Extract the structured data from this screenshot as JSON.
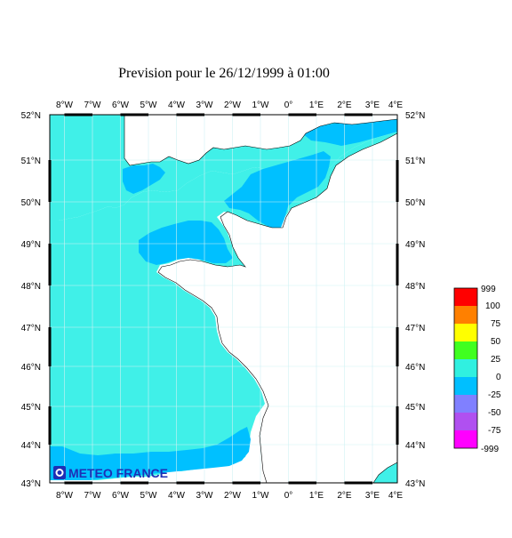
{
  "title": "Prevision pour le 26/12/1999 à 01:00",
  "longitude_labels": [
    "8°W",
    "7°W",
    "6°W",
    "5°W",
    "4°W",
    "3°W",
    "2°W",
    "1°W",
    "0°",
    "1°E",
    "2°E",
    "3°E",
    "4°E"
  ],
  "latitude_labels": [
    "52°N",
    "51°N",
    "50°N",
    "49°N",
    "48°N",
    "47°N",
    "46°N",
    "45°N",
    "44°N",
    "43°N"
  ],
  "legend": {
    "labels": [
      "999",
      "100",
      "75",
      "50",
      "25",
      "0",
      "-25",
      "-50",
      "-75",
      "-999"
    ],
    "colors": [
      "#ff0000",
      "#ff8000",
      "#ffff00",
      "#40ff20",
      "#30f0e0",
      "#00bfff",
      "#8080ff",
      "#b050f0",
      "#ff00ff"
    ]
  },
  "colors": {
    "sea_light": "#40f0e8",
    "sea_mid": "#00c0ff",
    "land": "#ffffff",
    "grid": "#c8eef0"
  },
  "logo": {
    "text": "METEO FRANCE",
    "icon": "meteo-france-logo-icon"
  }
}
